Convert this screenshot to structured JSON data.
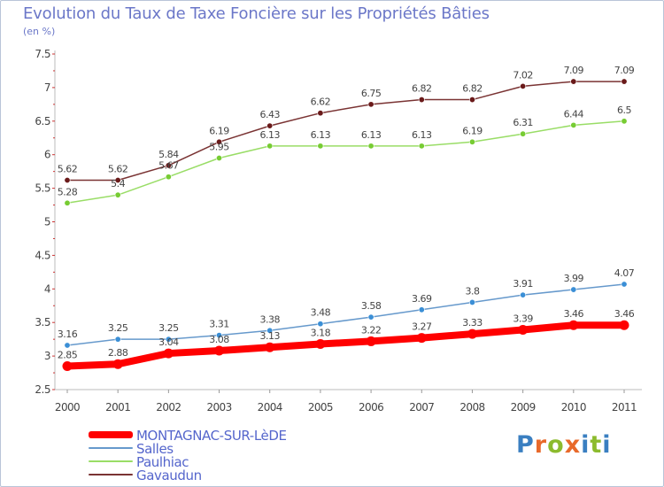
{
  "header": {
    "title": "Evolution du Taux de Taxe Foncière sur les Propriétés Bâties",
    "subtitle": "(en %)"
  },
  "logo": {
    "text": "Proxiti",
    "letter_colors": [
      "#3a7fc1",
      "#e8692a",
      "#8cbb2e",
      "#e8692a",
      "#3a7fc1",
      "#8cbb2e",
      "#3a7fc1"
    ]
  },
  "chart_data": {
    "type": "line",
    "title": "Evolution du Taux de Taxe Foncière sur les Propriétés Bâties",
    "ylabel": "(en %)",
    "xlabel": "",
    "categories": [
      "2000",
      "2001",
      "2002",
      "2003",
      "2004",
      "2005",
      "2006",
      "2007",
      "2008",
      "2009",
      "2010",
      "2011"
    ],
    "ylim": [
      2.5,
      7.5
    ],
    "yticks": [
      "2.5",
      "3",
      "3.5",
      "4",
      "4.5",
      "5",
      "5.5",
      "6",
      "6.5",
      "7",
      "7.5"
    ],
    "grid": false,
    "legend_position": "bottom-left",
    "series": [
      {
        "name": "MONTAGNAC-SUR-LèDE",
        "color": "#ff0000",
        "thick": true,
        "values": [
          2.85,
          2.88,
          3.04,
          3.08,
          3.13,
          3.18,
          3.22,
          3.27,
          3.33,
          3.39,
          3.46,
          3.46
        ],
        "labels": [
          "2.85",
          "2.88",
          "3.04",
          "3.08",
          "3.13",
          "3.18",
          "3.22",
          "3.27",
          "3.33",
          "3.39",
          "3.46",
          "3.46"
        ]
      },
      {
        "name": "Salles",
        "color": "#6699cc",
        "marker": "#3b8fd6",
        "values": [
          3.16,
          3.25,
          3.25,
          3.31,
          3.38,
          3.48,
          3.58,
          3.69,
          3.8,
          3.91,
          3.99,
          4.07
        ],
        "labels": [
          "3.16",
          "3.25",
          "3.25",
          "3.31",
          "3.38",
          "3.48",
          "3.58",
          "3.69",
          "3.8",
          "3.91",
          "3.99",
          "4.07"
        ]
      },
      {
        "name": "Paulhiac",
        "color": "#99dd66",
        "marker": "#77cc33",
        "values": [
          5.28,
          5.4,
          5.67,
          5.95,
          6.13,
          6.13,
          6.13,
          6.13,
          6.19,
          6.31,
          6.44,
          6.5
        ],
        "labels": [
          "5.28",
          "5.4",
          "5.67",
          "5.95",
          "6.13",
          "6.13",
          "6.13",
          "6.13",
          "6.19",
          "6.31",
          "6.44",
          "6.5"
        ]
      },
      {
        "name": "Gavaudun",
        "color": "#7a3333",
        "marker": "#6a1a1a",
        "values": [
          5.62,
          5.62,
          5.84,
          6.19,
          6.43,
          6.62,
          6.75,
          6.82,
          6.82,
          7.02,
          7.09,
          7.09
        ],
        "labels": [
          "5.62",
          "5.62",
          "5.84",
          "6.19",
          "6.43",
          "6.62",
          "6.75",
          "6.82",
          "6.82",
          "7.02",
          "7.09",
          "7.09"
        ]
      }
    ]
  }
}
